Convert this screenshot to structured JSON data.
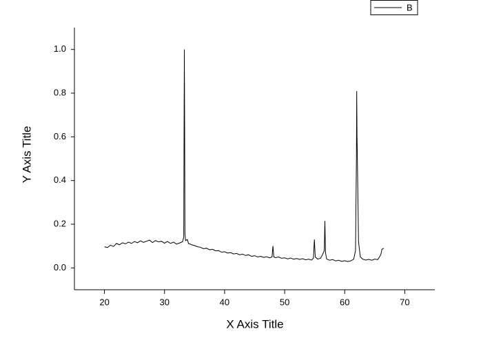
{
  "chart_data": {
    "type": "line",
    "x_label": "X Axis Title",
    "y_label": "Y Axis Title",
    "legend": "upper right",
    "xlim": [
      15,
      75
    ],
    "ylim": [
      -0.1,
      1.1
    ],
    "xticks": [
      20,
      30,
      40,
      50,
      60,
      70
    ],
    "yticks": [
      {
        "value": 0,
        "label": "0.0"
      },
      0.2,
      0.4,
      0.6,
      0.8,
      {
        "value": 1,
        "label": "1.0"
      }
    ],
    "x": [
      20,
      20.5,
      21,
      21.5,
      22,
      22.5,
      23,
      23.5,
      24,
      24.5,
      25,
      25.5,
      26,
      26.5,
      27,
      27.5,
      28,
      28.5,
      29,
      29.5,
      30,
      30.5,
      31,
      31.5,
      32,
      32.5,
      33,
      33.2,
      33.3,
      33.35,
      33.4,
      33.5,
      33.8,
      34,
      34.5,
      35,
      35.5,
      36,
      36.5,
      37,
      37.5,
      38,
      38.5,
      39,
      39.5,
      40,
      40.5,
      41,
      41.5,
      42,
      42.5,
      43,
      43.5,
      44,
      44.5,
      45,
      45.5,
      46,
      46.5,
      47,
      47.5,
      47.9,
      48.05,
      48.2,
      48.5,
      49,
      49.5,
      50,
      50.5,
      51,
      51.5,
      52,
      52.5,
      53,
      53.5,
      54,
      54.5,
      54.8,
      54.95,
      55.1,
      55.5,
      56,
      56.3,
      56.6,
      56.7,
      56.8,
      57,
      57.5,
      58,
      58.5,
      59,
      59.5,
      60,
      60.5,
      61,
      61.5,
      61.8,
      61.95,
      62,
      62.05,
      62.1,
      62.3,
      62.6,
      63,
      63.5,
      64,
      64.5,
      65,
      65.5,
      66,
      66.2,
      66.5
    ],
    "series": [
      {
        "name": "B",
        "color": "#000000",
        "values": [
          0.097,
          0.093,
          0.104,
          0.098,
          0.112,
          0.106,
          0.115,
          0.11,
          0.118,
          0.112,
          0.121,
          0.115,
          0.124,
          0.117,
          0.122,
          0.127,
          0.116,
          0.125,
          0.119,
          0.122,
          0.113,
          0.121,
          0.112,
          0.118,
          0.109,
          0.114,
          0.12,
          0.14,
          1.0,
          0.66,
          0.16,
          0.125,
          0.13,
          0.112,
          0.106,
          0.102,
          0.097,
          0.094,
          0.088,
          0.09,
          0.083,
          0.085,
          0.078,
          0.079,
          0.072,
          0.074,
          0.068,
          0.07,
          0.064,
          0.066,
          0.06,
          0.063,
          0.057,
          0.06,
          0.053,
          0.056,
          0.05,
          0.053,
          0.048,
          0.051,
          0.046,
          0.05,
          0.1,
          0.05,
          0.047,
          0.05,
          0.044,
          0.046,
          0.041,
          0.045,
          0.04,
          0.043,
          0.039,
          0.042,
          0.037,
          0.04,
          0.036,
          0.045,
          0.13,
          0.05,
          0.04,
          0.045,
          0.06,
          0.08,
          0.215,
          0.07,
          0.04,
          0.035,
          0.038,
          0.032,
          0.035,
          0.03,
          0.033,
          0.029,
          0.032,
          0.04,
          0.08,
          0.5,
          0.81,
          0.6,
          0.52,
          0.12,
          0.05,
          0.04,
          0.036,
          0.039,
          0.035,
          0.04,
          0.038,
          0.06,
          0.085,
          0.09
        ]
      }
    ]
  }
}
